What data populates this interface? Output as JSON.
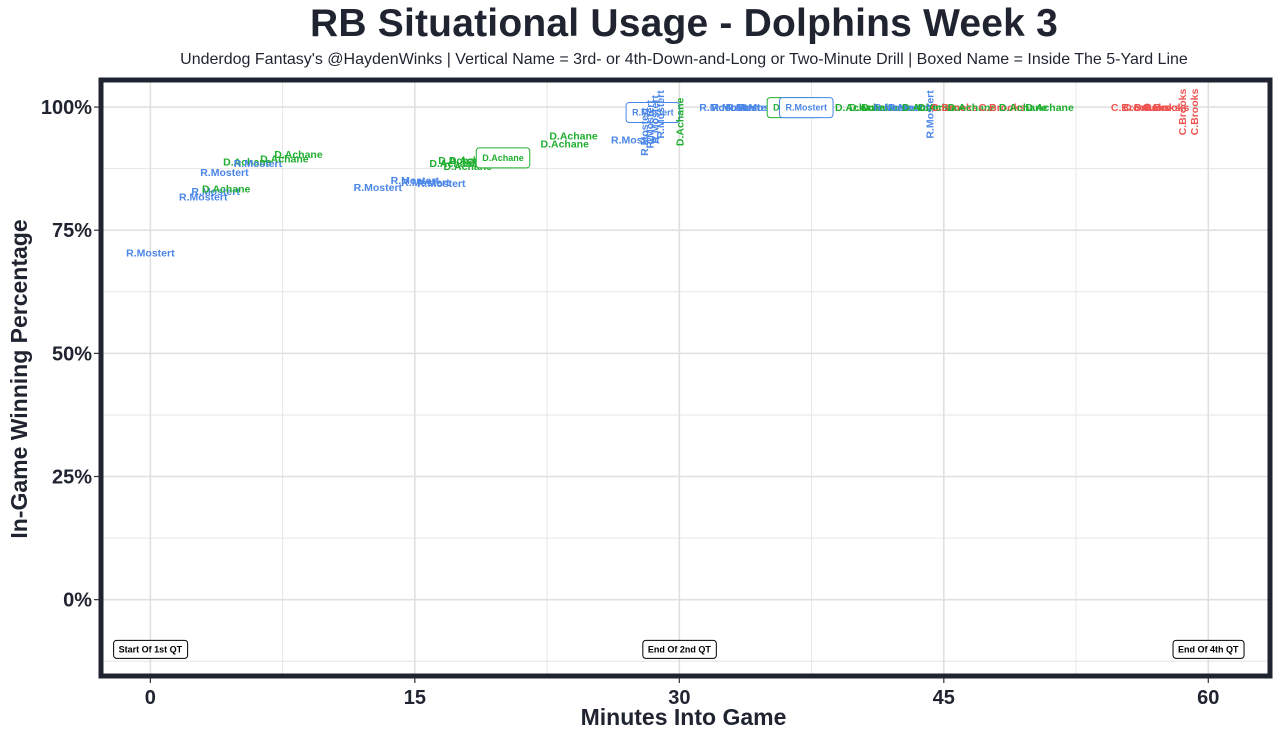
{
  "title": "RB Situational Usage - Dolphins Week 3",
  "subtitle": "Underdog Fantasy's @HaydenWinks | Vertical Name = 3rd- or 4th-Down-and-Long or Two-Minute Drill | Boxed Name = Inside The 5-Yard Line",
  "colors": {
    "R.Mostert": "#4a86e8",
    "D.Achane": "#1fae2f",
    "C.Brooks": "#ef5350",
    "frame": "#1f2430",
    "grid": "#e6e6e6"
  },
  "chart_data": {
    "type": "scatter",
    "title": "RB Situational Usage - Dolphins Week 3",
    "xlabel": "Minutes Into Game",
    "ylabel": "In-Game Winning Percentage",
    "xlim": [
      -2.8,
      63.5
    ],
    "ylim": [
      -0.155,
      1.055
    ],
    "x_ticks": [
      0,
      15,
      30,
      45,
      60
    ],
    "x_tick_labels": [
      "0",
      "15",
      "30",
      "45",
      "60"
    ],
    "y_ticks": [
      0,
      0.25,
      0.5,
      0.75,
      1.0
    ],
    "y_tick_labels": [
      "0%",
      "25%",
      "50%",
      "75%",
      "100%"
    ],
    "grid": true,
    "legend": "none",
    "annotations": [
      {
        "label": "Start Of 1st QT",
        "x": 0,
        "y": -0.1
      },
      {
        "label": "End Of 2nd QT",
        "x": 30,
        "y": -0.1
      },
      {
        "label": "End Of 4th QT",
        "x": 60,
        "y": -0.1
      }
    ],
    "points": [
      {
        "player": "R.Mostert",
        "x": 0,
        "y": 0.705
      },
      {
        "player": "R.Mostert",
        "x": 3.0,
        "y": 0.818
      },
      {
        "player": "R.Mostert",
        "x": 3.7,
        "y": 0.83
      },
      {
        "player": "D.Achane",
        "x": 4.3,
        "y": 0.835
      },
      {
        "player": "R.Mostert",
        "x": 4.2,
        "y": 0.868
      },
      {
        "player": "D.Achane",
        "x": 5.5,
        "y": 0.89
      },
      {
        "player": "R.Mostert",
        "x": 6.1,
        "y": 0.887
      },
      {
        "player": "D.Achane",
        "x": 7.6,
        "y": 0.896
      },
      {
        "player": "D.Achane",
        "x": 8.4,
        "y": 0.905
      },
      {
        "player": "R.Mostert",
        "x": 12.9,
        "y": 0.838
      },
      {
        "player": "R.Mostert",
        "x": 15.0,
        "y": 0.852
      },
      {
        "player": "R.Mostert",
        "x": 15.6,
        "y": 0.848
      },
      {
        "player": "R.Mostert",
        "x": 16.5,
        "y": 0.846
      },
      {
        "player": "D.Achane",
        "x": 17.2,
        "y": 0.887
      },
      {
        "player": "D.Achane",
        "x": 17.7,
        "y": 0.893
      },
      {
        "player": "D.Achane",
        "x": 18.3,
        "y": 0.893
      },
      {
        "player": "D.Achane",
        "x": 18.0,
        "y": 0.88
      },
      {
        "player": "D.Achane",
        "x": 20.0,
        "y": 0.898,
        "boxed": true
      },
      {
        "player": "D.Achane",
        "x": 23.5,
        "y": 0.926
      },
      {
        "player": "D.Achane",
        "x": 24.0,
        "y": 0.942
      },
      {
        "player": "R.Mostert",
        "x": 27.5,
        "y": 0.934
      },
      {
        "player": "R.Mostert",
        "x": 28.5,
        "y": 0.99,
        "boxed": true
      },
      {
        "player": "R.Mostert",
        "x": 28.0,
        "y": 0.95,
        "vertical": true
      },
      {
        "player": "R.Mostert",
        "x": 28.3,
        "y": 0.965,
        "vertical": true
      },
      {
        "player": "R.Mostert",
        "x": 28.6,
        "y": 0.975,
        "vertical": true
      },
      {
        "player": "R.Mostert",
        "x": 28.9,
        "y": 0.985,
        "vertical": true
      },
      {
        "player": "D.Achane",
        "x": 30.0,
        "y": 0.97,
        "vertical": true
      },
      {
        "player": "R.Mostert",
        "x": 32.5,
        "y": 1.0
      },
      {
        "player": "R.Mostert",
        "x": 33.2,
        "y": 1.0
      },
      {
        "player": "R.Mostert",
        "x": 34.0,
        "y": 1.0
      },
      {
        "player": "R.Mostert",
        "x": 34.7,
        "y": 1.0
      },
      {
        "player": "D.Achane",
        "x": 36.5,
        "y": 1.0,
        "boxed": true
      },
      {
        "player": "R.Mostert",
        "x": 37.2,
        "y": 1.0,
        "boxed": true
      },
      {
        "player": "D.Achane",
        "x": 40.2,
        "y": 1.0
      },
      {
        "player": "D.Achane",
        "x": 41.0,
        "y": 1.0
      },
      {
        "player": "D.Achane",
        "x": 41.7,
        "y": 1.0
      },
      {
        "player": "R.Mostert",
        "x": 42.4,
        "y": 1.0
      },
      {
        "player": "R.Mostert",
        "x": 43.2,
        "y": 1.0
      },
      {
        "player": "D.Achane",
        "x": 44.0,
        "y": 1.0
      },
      {
        "player": "R.Mostert",
        "x": 44.2,
        "y": 0.985,
        "vertical": true
      },
      {
        "player": "D.Achane",
        "x": 44.9,
        "y": 1.0
      },
      {
        "player": "C.Brooks",
        "x": 45.6,
        "y": 1.0
      },
      {
        "player": "D.Achane",
        "x": 46.6,
        "y": 1.0
      },
      {
        "player": "C.Brooks",
        "x": 48.3,
        "y": 1.0
      },
      {
        "player": "D.Achane",
        "x": 49.5,
        "y": 1.0
      },
      {
        "player": "D.Achane",
        "x": 51.0,
        "y": 1.0
      },
      {
        "player": "C.Brooks",
        "x": 55.8,
        "y": 1.0
      },
      {
        "player": "C.Brooks",
        "x": 56.5,
        "y": 1.0
      },
      {
        "player": "C.Brooks",
        "x": 57.1,
        "y": 1.0
      },
      {
        "player": "C.Brooks",
        "x": 57.6,
        "y": 1.0
      },
      {
        "player": "C.Brooks",
        "x": 58.5,
        "y": 0.99,
        "vertical": true
      },
      {
        "player": "C.Brooks",
        "x": 59.2,
        "y": 0.99,
        "vertical": true
      }
    ]
  }
}
